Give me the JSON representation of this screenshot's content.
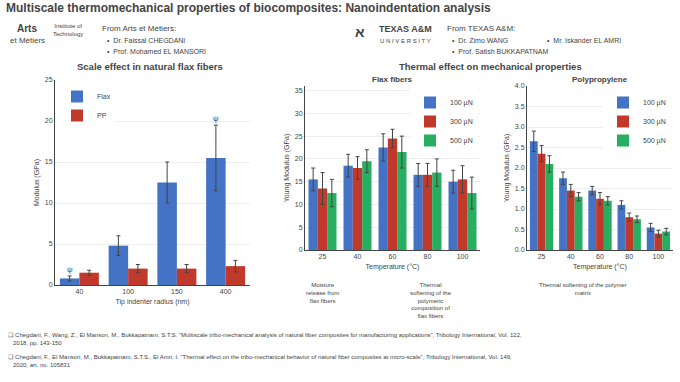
{
  "title": "Multiscale thermomechanical properties of biocomposites: Nanoindentation analysis",
  "annotations": [
    "Arts",
    "et Métiers",
    "Institute of\nTechnology",
    "From Arts et Métiers:",
    "•  Dr. Faissal CHEGDANI",
    "•  Prof. Mohamed EL MANSORI",
    "א",
    "TEXAS A&M",
    "U N I V E R S I T Y",
    "From TEXAS A&M:",
    "•  Dr. Zimo WANG",
    "•  Mr. Iskander EL AMRI",
    "•  Prof. Satish BUKKAPATNAM",
    "Scale effect in natural flax fibers",
    "Thermal effect on mechanical properties",
    "❑ Chegdani, F., Wang, Z., El Manson, M., Bukkapatnam, S.T.S. \"Multiscale tribo-mechanical analysis of natural fiber composites for manufacturing applications\", Tribology International, Vol. 122,\n   2018, pp. 143-150",
    "❑ Chegdani, F., El Mansori, M., Bukkapatnam, S.T.S., El Amri, I. \"Thermal effect on the tribo-mechanical behavior of natural fiber composites at micro-scale\", Tribology International, Vol. 149,\n   2020, art. no. 105831"
  ],
  "chart_data": [
    {
      "type": "bar",
      "categories": [
        "40",
        "100",
        "150",
        "400"
      ],
      "xlabel": "Tip indenter radius (nm)",
      "ylabel": "Modulus (GPa)",
      "ylim": [
        0,
        25
      ],
      "yticks": [
        0,
        5,
        10,
        15,
        20,
        25
      ],
      "grid": true,
      "legend": "upper left",
      "series": [
        {
          "name": "Flax",
          "color": "#4472C4",
          "values": [
            0.8,
            4.8,
            12.5,
            15.5
          ],
          "errors": [
            0.3,
            1.2,
            2.5,
            4.0
          ]
        },
        {
          "name": "PP",
          "color": "#C0392B",
          "values": [
            1.5,
            2.0,
            2.0,
            2.3
          ],
          "errors": [
            0.3,
            0.5,
            0.5,
            0.7
          ]
        }
      ],
      "annotations": [
        {
          "text": "ψ",
          "category": "40",
          "series": "Flax"
        },
        {
          "text": "ψ",
          "category": "400",
          "series": "Flax"
        }
      ]
    },
    {
      "type": "bar",
      "title": "Flax fibers",
      "categories": [
        "25",
        "40",
        "60",
        "80",
        "100"
      ],
      "xlabel": "Temperature (°C)",
      "ylabel": "Young Modulus (GPa)",
      "ylim": [
        0,
        36
      ],
      "yticks": [
        0,
        5,
        10,
        15,
        20,
        25,
        30,
        35
      ],
      "grid": true,
      "legend": "upper right",
      "series": [
        {
          "name": "100 µN",
          "color": "#4472C4",
          "values": [
            15.5,
            18.5,
            22.5,
            16.5,
            15.0
          ],
          "errors": [
            2.5,
            2.5,
            3.0,
            2.5,
            2.5
          ]
        },
        {
          "name": "300 µN",
          "color": "#C0392B",
          "values": [
            13.5,
            18.0,
            24.5,
            16.5,
            15.5
          ],
          "errors": [
            3.5,
            2.5,
            2.0,
            2.5,
            3.0
          ]
        },
        {
          "name": "500 µN",
          "color": "#27AE60",
          "values": [
            12.5,
            19.5,
            21.5,
            17.0,
            12.5
          ],
          "errors": [
            3.0,
            2.5,
            3.5,
            3.0,
            3.5
          ]
        }
      ],
      "annotations": [
        "Moisture\nrelease from\nflax fibers",
        "Thermal\nsoftening of the\npolymeric\ncomposition of\nflax fibers"
      ]
    },
    {
      "type": "bar",
      "title": "Polypropylene",
      "categories": [
        "25",
        "40",
        "60",
        "80",
        "100"
      ],
      "xlabel": "Temperature (°C)",
      "ylabel": "Young Modulus (GPa)",
      "ylim": [
        0,
        4
      ],
      "yticks": [
        {
          "value": 0,
          "label": "0.0"
        },
        0.5,
        {
          "value": 1,
          "label": "1.0"
        },
        1.5,
        {
          "value": 2,
          "label": "2.0"
        },
        2.5,
        {
          "value": 3,
          "label": "3.0"
        },
        3.5,
        {
          "value": 4,
          "label": "4.0"
        }
      ],
      "grid": true,
      "legend": "upper right",
      "series": [
        {
          "name": "100 µN",
          "color": "#4472C4",
          "values": [
            2.65,
            1.75,
            1.45,
            1.1,
            0.55
          ],
          "errors": [
            0.25,
            0.15,
            0.1,
            0.1,
            0.1
          ]
        },
        {
          "name": "300 µN",
          "color": "#C0392B",
          "values": [
            2.35,
            1.45,
            1.25,
            0.8,
            0.4
          ],
          "errors": [
            0.2,
            0.15,
            0.15,
            0.1,
            0.08
          ]
        },
        {
          "name": "500 µN",
          "color": "#27AE60",
          "values": [
            2.1,
            1.3,
            1.2,
            0.75,
            0.45
          ],
          "errors": [
            0.2,
            0.1,
            0.1,
            0.08,
            0.08
          ]
        }
      ],
      "annotations": [
        "Thermal softening of the polymer\nmatrix"
      ]
    }
  ]
}
